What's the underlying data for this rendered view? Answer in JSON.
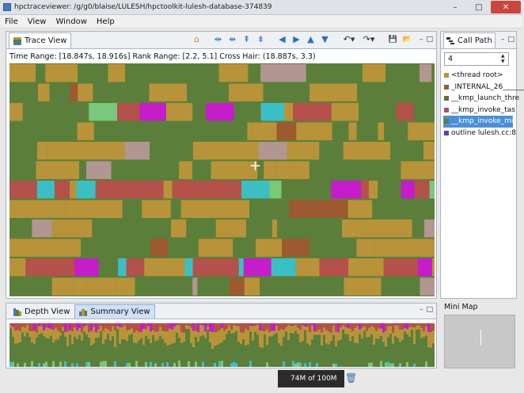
{
  "window": {
    "title": "hpctraceviewer: /g/g0/blaise/LULESH/hpctoolkit-lulesh-database-374839",
    "controls": [
      "–",
      "□",
      "✕"
    ]
  },
  "menu": [
    "File",
    "View",
    "Window",
    "Help"
  ],
  "trace_view": {
    "tab_label": "Trace View",
    "info_text": "Time Range: [18.847s, 18.916s]  Rank Range: [2.2, 5.1]  Cross Hair: (18.887s, 3.3)",
    "crosshair_glyph": "+",
    "toolbar": [
      {
        "name": "home",
        "glyph": "⌂"
      },
      {
        "name": "zoom-in-time",
        "glyph": "⇹"
      },
      {
        "name": "zoom-out-time",
        "glyph": "⇻"
      },
      {
        "name": "zoom-in-process",
        "glyph": "⇞"
      },
      {
        "name": "zoom-out-process",
        "glyph": "⇟"
      },
      {
        "name": "left",
        "glyph": "◀"
      },
      {
        "name": "right",
        "glyph": "▶"
      },
      {
        "name": "up",
        "glyph": "▲"
      },
      {
        "name": "down",
        "glyph": "▼"
      },
      {
        "name": "undo",
        "glyph": "↶▾"
      },
      {
        "name": "redo",
        "glyph": "↷▾"
      },
      {
        "name": "save",
        "glyph": "💾"
      },
      {
        "name": "open",
        "glyph": "📂"
      }
    ],
    "view_controls": [
      "–",
      "□"
    ]
  },
  "colors": {
    "green": "#5b7f3a",
    "gold": "#b8933a",
    "red": "#b3514a",
    "cyan": "#3cbfc4",
    "magenta": "#c51dc9",
    "lightgreen": "#79c87c",
    "brown": "#9b5a2f",
    "pink": "#b29692",
    "olive": "#6b6e2a"
  },
  "bottom": {
    "tabs": [
      {
        "label": "Depth View"
      },
      {
        "label": "Summary View"
      }
    ],
    "controls": [
      "–",
      "□"
    ]
  },
  "call_path": {
    "tab_label": "Call Path",
    "depth_value": "4",
    "items": [
      {
        "label": "<thread root>",
        "color": "#b8933a",
        "selected": false
      },
      {
        "label": "_INTERNAL_26______",
        "color": "#9b5a2f",
        "selected": false
      },
      {
        "label": "__kmp_launch_thre",
        "color": "#6b6e2a",
        "selected": false
      },
      {
        "label": "__kmp_invoke_tas",
        "color": "#b34a7a",
        "selected": false
      },
      {
        "label": "__kmp_invoke_mi",
        "color": "#5b7f3a",
        "selected": true
      },
      {
        "label": "outline lulesh.cc:8",
        "color": "#5d3ec1",
        "selected": false
      }
    ],
    "controls": [
      "–",
      "□"
    ]
  },
  "mini_map": {
    "label": "Mini Map"
  },
  "status": {
    "heap": "74M of 100M"
  }
}
